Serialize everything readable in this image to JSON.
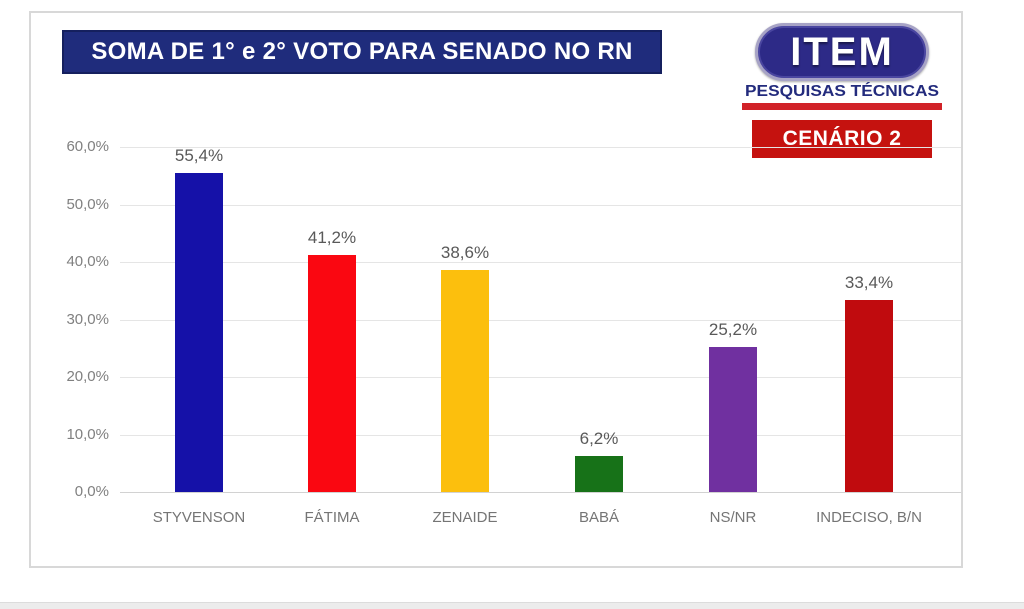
{
  "header": {
    "title": "SOMA DE 1° e 2° VOTO PARA SENADO NO RN"
  },
  "branding": {
    "logo_text": "ITEM",
    "logo_subtitle": "PESQUISAS TÉCNICAS"
  },
  "scenario_badge": {
    "label": "CENÁRIO 2"
  },
  "colors": {
    "title_box_bg": "#1f2c7c",
    "logo_badge_bg": "#2d2a87",
    "logo_underline": "#d12228",
    "scenario_bg": "#c5120f",
    "grid": "#e5e5e5",
    "axis_text": "#808080",
    "value_label_text": "#595959"
  },
  "chart_data": {
    "type": "bar",
    "title": "SOMA DE 1° e 2° VOTO PARA SENADO NO RN",
    "categories": [
      "STYVENSON",
      "FÁTIMA",
      "ZENAIDE",
      "BABÁ",
      "NS/NR",
      "INDECISO, B/N"
    ],
    "values": [
      55.4,
      41.2,
      38.6,
      6.2,
      25.2,
      33.4
    ],
    "value_labels": [
      "55,4%",
      "41,2%",
      "38,6%",
      "6,2%",
      "25,2%",
      "33,4%"
    ],
    "bar_colors": [
      "#1511a8",
      "#fa0711",
      "#fcbf0d",
      "#177218",
      "#7030a0",
      "#c00b0e"
    ],
    "xlabel": "",
    "ylabel": "",
    "ylim": [
      0,
      60
    ],
    "y_ticks": [
      "60,0%",
      "50,0%",
      "40,0%",
      "30,0%",
      "20,0%",
      "10,0%",
      "0,0%"
    ],
    "grid": true,
    "legend": false
  }
}
